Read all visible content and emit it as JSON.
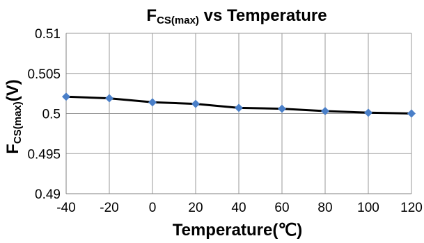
{
  "chart_data": {
    "type": "line",
    "title": {
      "main": "F",
      "sub": "CS(max)",
      "rest": " vs Temperature"
    },
    "xlabel": "Temperature(℃)",
    "ylabel": {
      "main": "F",
      "sub": "CS(max)",
      "rest": "(V)"
    },
    "xlim": [
      -40,
      120
    ],
    "ylim": [
      0.49,
      0.51
    ],
    "x_ticks": [
      {
        "value": -40,
        "label": "-40"
      },
      {
        "value": -20,
        "label": "-20"
      },
      {
        "value": 0,
        "label": "0"
      },
      {
        "value": 20,
        "label": "20"
      },
      {
        "value": 40,
        "label": "40"
      },
      {
        "value": 60,
        "label": "60"
      },
      {
        "value": 80,
        "label": "80"
      },
      {
        "value": 100,
        "label": "100"
      },
      {
        "value": 120,
        "label": "120"
      }
    ],
    "y_ticks": [
      {
        "value": 0.49,
        "label": "0.49"
      },
      {
        "value": 0.495,
        "label": "0.495"
      },
      {
        "value": 0.5,
        "label": "0.5"
      },
      {
        "value": 0.505,
        "label": "0.505"
      },
      {
        "value": 0.51,
        "label": "0.51"
      }
    ],
    "grid": true,
    "legend": "none",
    "series": [
      {
        "x": [
          -40,
          -20,
          0,
          20,
          40,
          60,
          80,
          100,
          120
        ],
        "values": [
          0.5021,
          0.5019,
          0.5014,
          0.5012,
          0.5007,
          0.5006,
          0.5003,
          0.5001,
          0.5
        ],
        "line_color": "#000000",
        "marker_color": "#4a7fc8",
        "marker": "diamond"
      }
    ]
  }
}
